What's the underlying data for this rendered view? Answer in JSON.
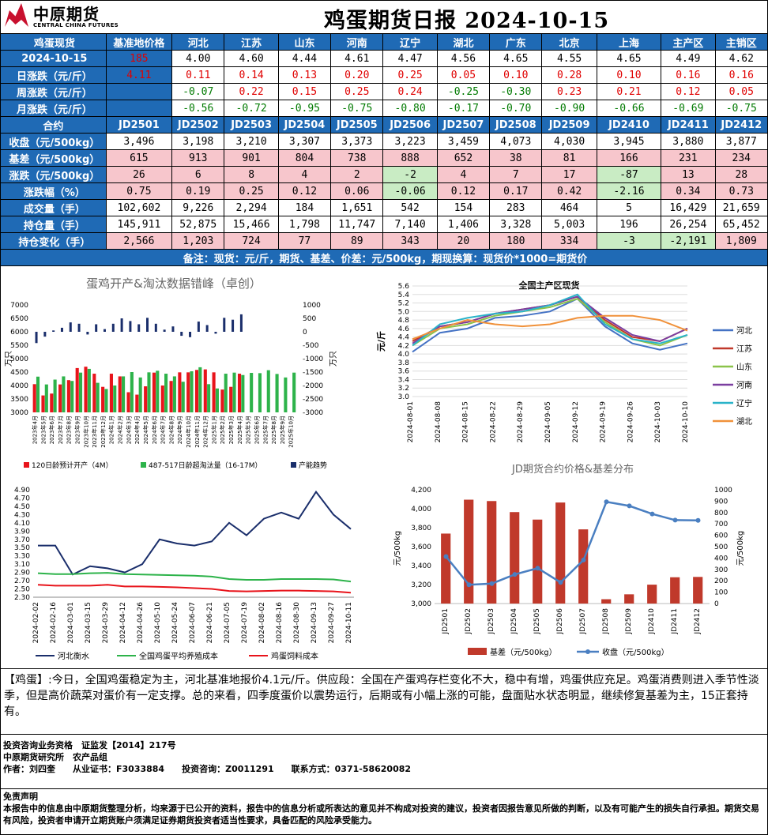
{
  "header": {
    "logo_cn": "中原期货",
    "logo_en": "CENTRAL CHINA FUTURES",
    "title": "鸡蛋期货日报 2024-10-15"
  },
  "spot": {
    "headers": [
      "鸡蛋现货",
      "基准地价格",
      "河北",
      "江苏",
      "山东",
      "河南",
      "辽宁",
      "湖北",
      "广东",
      "北京",
      "上海",
      "主产区",
      "主销区"
    ],
    "rows": [
      {
        "label": "2024-10-15",
        "values": [
          "",
          "4.00",
          "4.60",
          "4.44",
          "4.61",
          "4.47",
          "4.56",
          "4.65",
          "4.55",
          "4.65",
          "4.49",
          "4.62"
        ],
        "first_red": "185"
      },
      {
        "label": "日涨跌（元/斤）",
        "values": [
          "4.11",
          "0.11",
          "0.14",
          "0.13",
          "0.20",
          "0.25",
          "0.05",
          "0.10",
          "0.28",
          "0.10",
          "0.16",
          "0.16"
        ]
      },
      {
        "label": "周涨跌（元/斤）",
        "values": [
          "",
          "-0.07",
          "0.22",
          "0.15",
          "0.25",
          "0.24",
          "-0.25",
          "-0.30",
          "0.23",
          "0.21",
          "0.12",
          "0.05"
        ]
      },
      {
        "label": "月涨跌（元/斤）",
        "values": [
          "",
          "-0.56",
          "-0.72",
          "-0.95",
          "-0.75",
          "-0.80",
          "-0.17",
          "-0.70",
          "-0.90",
          "-0.66",
          "-0.69",
          "-0.75"
        ]
      }
    ]
  },
  "futures": {
    "headers": [
      "合约",
      "JD2501",
      "JD2502",
      "JD2503",
      "JD2504",
      "JD2505",
      "JD2506",
      "JD2507",
      "JD2508",
      "JD2509",
      "JD2410",
      "JD2411",
      "JD2412"
    ],
    "rows": [
      {
        "label": "收盘（元/500kg）",
        "values": [
          "3,496",
          "3,198",
          "3,210",
          "3,307",
          "3,373",
          "3,223",
          "3,459",
          "4,073",
          "4,030",
          "3,945",
          "3,880",
          "3,877"
        ]
      },
      {
        "label": "基差（元/500kg）",
        "values": [
          "615",
          "913",
          "901",
          "804",
          "738",
          "888",
          "652",
          "38",
          "81",
          "166",
          "231",
          "234"
        ]
      },
      {
        "label": "涨跌（元/500kg）",
        "values": [
          "26",
          "6",
          "8",
          "4",
          "2",
          "-2",
          "4",
          "7",
          "17",
          "-87",
          "13",
          "28"
        ]
      },
      {
        "label": "涨跌幅（%）",
        "values": [
          "0.75",
          "0.19",
          "0.25",
          "0.12",
          "0.06",
          "-0.06",
          "0.12",
          "0.17",
          "0.42",
          "-2.16",
          "0.34",
          "0.73"
        ]
      },
      {
        "label": "成交量（手）",
        "values": [
          "102,602",
          "9,226",
          "2,294",
          "184",
          "1,651",
          "542",
          "154",
          "283",
          "464",
          "5",
          "16,429",
          "21,659"
        ]
      },
      {
        "label": "持仓量（手）",
        "values": [
          "145,911",
          "52,875",
          "15,466",
          "1,798",
          "11,747",
          "7,140",
          "1,406",
          "3,328",
          "5,003",
          "196",
          "26,254",
          "65,452"
        ]
      },
      {
        "label": "持仓变化（手）",
        "values": [
          "2,566",
          "1,203",
          "724",
          "77",
          "89",
          "343",
          "20",
          "180",
          "334",
          "-3",
          "-2,191",
          "1,809"
        ]
      }
    ],
    "note": "备注：现货：元/斤，期货、基差、价差：元/500kg，期现换算：现货价*1000=期货价"
  },
  "chart_data": [
    {
      "type": "bar",
      "title": "蛋鸡开产&淘汰数据错峰（卓创）",
      "ylabel": "万只",
      "y2label": "万只",
      "ylim": [
        3000,
        7000
      ],
      "y2lim": [
        -3000,
        1000
      ],
      "series": [
        {
          "name": "120日龄预计开产（4M）",
          "color": "#e8141b",
          "values": [
            4050,
            3630,
            3700,
            4040,
            4200,
            4650,
            4700,
            4440,
            3950,
            4440,
            4340,
            3750,
            3660,
            3970,
            4480,
            4000,
            4170,
            4490,
            4490,
            4580,
            4600,
            4490,
            3850,
            3950,
            4440
          ]
        },
        {
          "name": "487-517日龄超淘汰量（16-17M）",
          "color": "#2db34a",
          "values": [
            4330,
            4040,
            4220,
            4340,
            4170,
            4480,
            4620,
            4100,
            3870,
            4000,
            4340,
            4500,
            4300,
            4490,
            4550,
            4440,
            4340,
            4140,
            4530,
            4680,
            4050,
            3890,
            4440,
            4480,
            4390,
            4470,
            4460,
            4570,
            4430,
            4300,
            4480
          ]
        },
        {
          "name": "产能趋势",
          "color": "#1a2e6b",
          "values": [
            -420,
            -180,
            50,
            150,
            350,
            300,
            -100,
            280,
            100,
            300,
            500,
            400,
            280,
            520,
            300,
            80,
            200,
            -150,
            -200,
            380,
            250,
            -70,
            520,
            450,
            650
          ]
        }
      ]
    },
    {
      "type": "line",
      "title": "全国主产区现货",
      "ylabel": "元/斤",
      "ylim": [
        3.0,
        5.6
      ],
      "x": [
        "2024-08-01",
        "2024-08-08",
        "2024-08-15",
        "2024-08-22",
        "2024-08-29",
        "2024-09-05",
        "2024-09-12",
        "2024-09-19",
        "2024-09-26",
        "2024-10-03",
        "2024-10-10"
      ],
      "series": [
        {
          "name": "河北",
          "color": "#4472c4",
          "values": [
            4.05,
            4.5,
            4.6,
            4.85,
            4.9,
            5.0,
            5.3,
            4.65,
            4.25,
            4.1,
            4.25
          ]
        },
        {
          "name": "江苏",
          "color": "#c0392b",
          "values": [
            4.3,
            4.65,
            4.75,
            4.95,
            5.05,
            5.15,
            5.35,
            4.8,
            4.4,
            4.3,
            4.6
          ]
        },
        {
          "name": "山东",
          "color": "#8bc34a",
          "values": [
            4.2,
            4.6,
            4.7,
            4.9,
            5.0,
            5.1,
            5.3,
            4.75,
            4.35,
            4.2,
            4.45
          ]
        },
        {
          "name": "河南",
          "color": "#7b3fa0",
          "values": [
            4.25,
            4.65,
            4.75,
            4.95,
            5.05,
            5.15,
            5.35,
            4.85,
            4.45,
            4.3,
            4.6
          ]
        },
        {
          "name": "辽宁",
          "color": "#2ab3c9",
          "values": [
            4.2,
            4.7,
            4.85,
            4.95,
            5.0,
            5.15,
            5.4,
            4.7,
            4.35,
            4.25,
            4.45
          ]
        },
        {
          "name": "湖北",
          "color": "#f0913a",
          "values": [
            4.35,
            4.6,
            4.8,
            4.7,
            4.65,
            4.7,
            4.85,
            4.9,
            4.9,
            4.8,
            4.55
          ]
        }
      ]
    },
    {
      "type": "line",
      "ylim": [
        2.3,
        4.9
      ],
      "x": [
        "2024-02-02",
        "2024-02-16",
        "2024-03-01",
        "2024-03-15",
        "2024-03-29",
        "2024-04-12",
        "2024-04-26",
        "2024-05-10",
        "2024-05-24",
        "2024-06-07",
        "2024-06-21",
        "2024-07-05",
        "2024-07-19",
        "2024-08-02",
        "2024-08-16",
        "2024-08-30",
        "2024-09-13",
        "2024-09-27",
        "2024-10-11"
      ],
      "series": [
        {
          "name": "河北衡水",
          "color": "#1a2e6b",
          "values": [
            3.55,
            3.55,
            2.85,
            3.05,
            3.0,
            2.9,
            3.1,
            3.7,
            3.6,
            3.55,
            3.65,
            4.1,
            3.8,
            4.2,
            4.35,
            4.2,
            4.85,
            4.3,
            3.95
          ]
        },
        {
          "name": "全国鸡蛋平均养殖成本",
          "color": "#2db34a",
          "values": [
            2.88,
            2.86,
            2.86,
            2.88,
            2.89,
            2.86,
            2.85,
            2.84,
            2.83,
            2.82,
            2.8,
            2.74,
            2.72,
            2.72,
            2.74,
            2.74,
            2.74,
            2.73,
            2.68
          ]
        },
        {
          "name": "鸡蛋饲料成本",
          "color": "#e8141b",
          "values": [
            2.6,
            2.58,
            2.58,
            2.58,
            2.6,
            2.56,
            2.56,
            2.55,
            2.54,
            2.52,
            2.5,
            2.45,
            2.44,
            2.45,
            2.46,
            2.46,
            2.45,
            2.44,
            2.41
          ]
        }
      ]
    },
    {
      "type": "bar",
      "title": "JD期货合约价格&基差分布",
      "ylabel": "元/500kg",
      "y2label": "元/500kg",
      "ylim": [
        3000,
        4200
      ],
      "y2lim": [
        0,
        1000
      ],
      "categories": [
        "JD2501",
        "JD2502",
        "JD2503",
        "JD2504",
        "JD2505",
        "JD2506",
        "JD2507",
        "JD2508",
        "JD2509",
        "JD2410",
        "JD2411",
        "JD2412"
      ],
      "series": [
        {
          "name": "基差（元/500kg）",
          "color": "#c0392b",
          "values": [
            615,
            913,
            901,
            804,
            738,
            888,
            652,
            38,
            81,
            166,
            231,
            234
          ]
        },
        {
          "name": "收盘（元/500kg）",
          "color": "#4a7fc1",
          "values": [
            3496,
            3198,
            3210,
            3307,
            3373,
            3223,
            3459,
            4073,
            4030,
            3945,
            3880,
            3877
          ]
        }
      ]
    }
  ],
  "chart1_xlabels": [
    "2023年4月",
    "2023年5月",
    "2023年6月",
    "2023年7月",
    "2023年8月",
    "2023年9月",
    "2023年10月",
    "2023年11月",
    "2023年12月",
    "2024年1月",
    "2024年2月",
    "2024年3月",
    "2024年4月",
    "2024年5月",
    "2024年6月",
    "2024年7月",
    "2024年8月",
    "2024年9月",
    "2024年10月",
    "2024年11月",
    "2024年12月",
    "2025年1月",
    "2025年2月",
    "2025年3月",
    "2025年4月",
    "2025年5月",
    "2025年6月",
    "2025年7月",
    "2025年8月",
    "2025年9月",
    "2025年10月"
  ],
  "commentary": "【鸡蛋】:今日，全国鸡蛋稳定为主，河北基准地报价4.1元/斤。供应段：全国在产蛋鸡存栏变化不大，稳中有增，鸡蛋供应充足。鸡蛋消费则进入季节性淡季，但是高价蔬菜对蛋价有一定支撑。总的来看，四季度蛋价以震势运行，后期或有小幅上涨的可能，盘面贴水状态明显，继续修复基差为主，15正套持有。",
  "footer": {
    "line1": "投资咨询业务资格　证监发【2014】217号",
    "line2": "中原期货研究所　农产品组",
    "line3": "作者：刘四奎　　从业证书：F3033884　　投资咨询：Z0011291　　联系方式：0371-58620082",
    "disclaimer_title": "免责声明",
    "disclaimer": "本报告中的信息由中原期货整理分析，均来源于已公开的资料，报告中的信息分析或所表达的意见并不构成对投资的建议，投资者因报告意见所做的判断，以及有可能产生的损失自行承担。期货交易有风险，投资者申请开立期货账户须满足证券期货投资者适当性要求，具备匹配的风险承受能力。"
  }
}
